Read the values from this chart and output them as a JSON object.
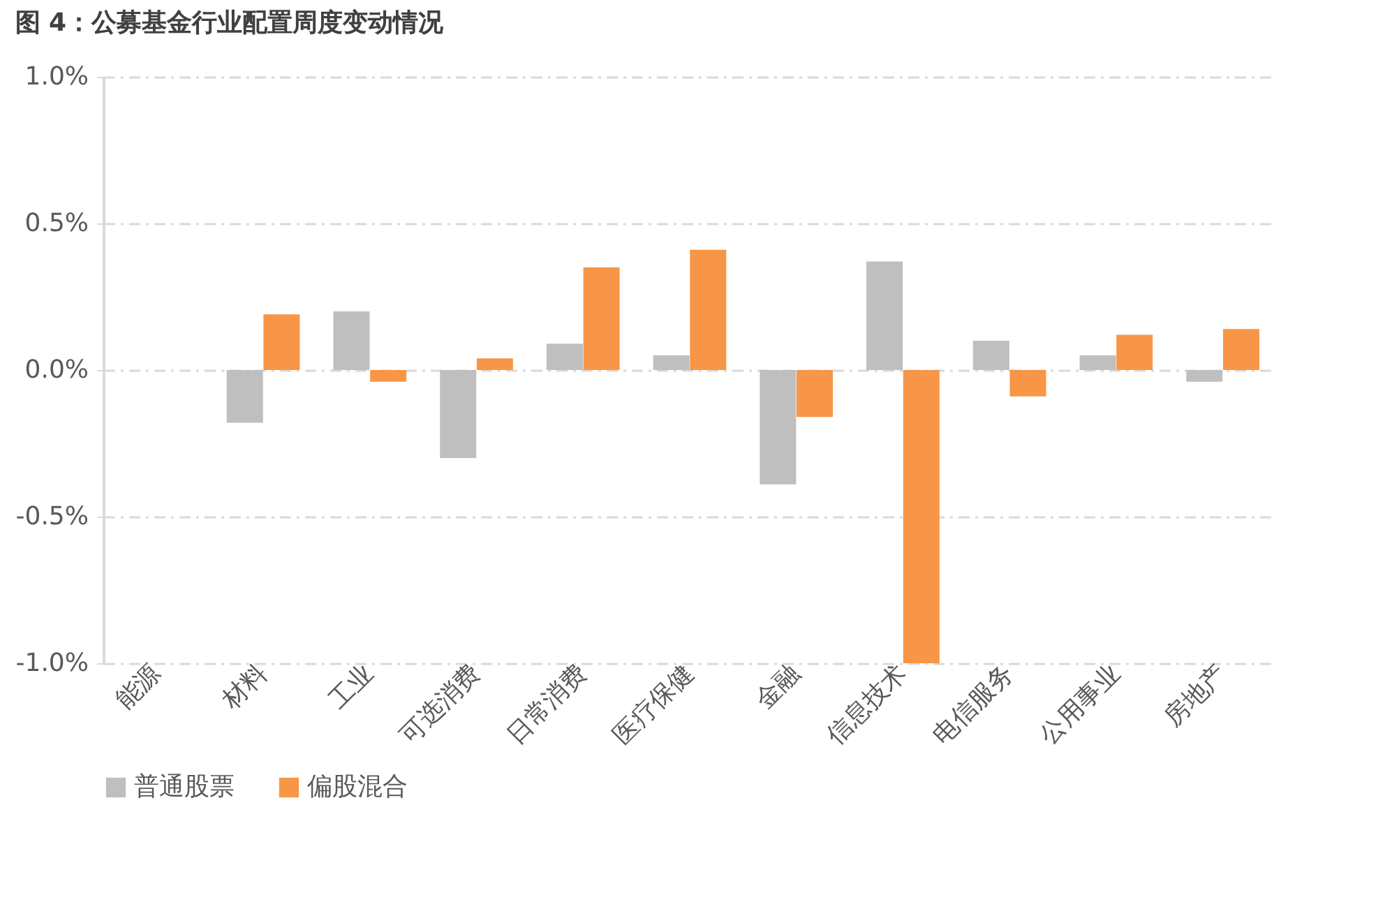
{
  "chart_data": {
    "type": "bar",
    "title": "图 4：公募基金行业配置周度变动情况",
    "categories": [
      "能源",
      "材料",
      "工业",
      "可选消费",
      "日常消费",
      "医疗保健",
      "金融",
      "信息技术",
      "电信服务",
      "公用事业",
      "房地产"
    ],
    "series": [
      {
        "name": "普通股票",
        "color": "#bfbfbf",
        "values": [
          0,
          -0.18,
          0.2,
          -0.3,
          0.09,
          0.05,
          -0.39,
          0.37,
          0.1,
          0.05,
          -0.04
        ]
      },
      {
        "name": "偏股混合",
        "color": "#f79646",
        "values": [
          0,
          0.19,
          -0.04,
          0.04,
          0.35,
          0.41,
          -0.16,
          -1.0,
          -0.09,
          0.12,
          0.14
        ]
      }
    ],
    "ylim": [
      -1.0,
      1.0
    ],
    "yticks": [
      {
        "value": -1.0,
        "label": "-1.0%"
      },
      {
        "value": -0.5,
        "label": "-0.5%"
      },
      {
        "value": 0,
        "label": "0.0%"
      },
      {
        "value": 0.5,
        "label": "0.5%"
      },
      {
        "value": 1.0,
        "label": "1.0%"
      }
    ],
    "grid": "y",
    "legend": "bottom"
  }
}
